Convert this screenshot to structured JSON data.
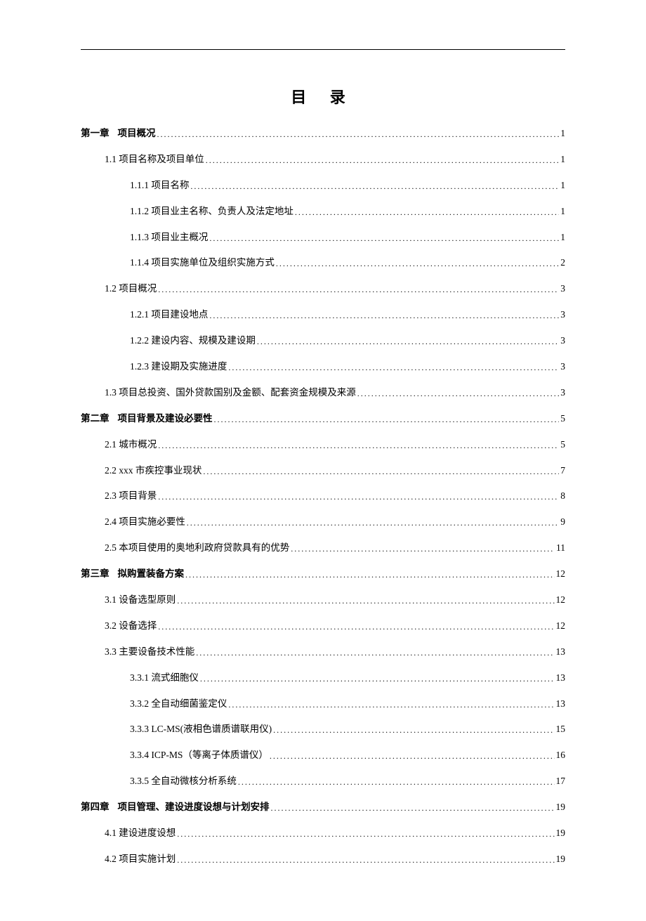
{
  "title": "目 录",
  "entries": [
    {
      "label": "项目概况",
      "page": "1",
      "level": 0,
      "prefix": "第一章",
      "bold": true
    },
    {
      "label": "1.1 项目名称及项目单位",
      "page": "1",
      "level": 1
    },
    {
      "label": "1.1.1 项目名称",
      "page": "1",
      "level": 2
    },
    {
      "label": "1.1.2 项目业主名称、负责人及法定地址",
      "page": "1",
      "level": 2
    },
    {
      "label": "1.1.3 项目业主概况",
      "page": "1",
      "level": 2
    },
    {
      "label": "1.1.4 项目实施单位及组织实施方式",
      "page": "2",
      "level": 2
    },
    {
      "label": "1.2 项目概况",
      "page": "3",
      "level": 1
    },
    {
      "label": "1.2.1 项目建设地点",
      "page": "3",
      "level": 2
    },
    {
      "label": "1.2.2 建设内容、规模及建设期",
      "page": "3",
      "level": 2
    },
    {
      "label": "1.2.3 建设期及实施进度",
      "page": "3",
      "level": 2
    },
    {
      "label": "1.3 项目总投资、国外贷款国别及金额、配套资金规模及来源",
      "page": "3",
      "level": 1
    },
    {
      "label": "项目背景及建设必要性",
      "page": "5",
      "level": 0,
      "prefix": "第二章",
      "bold": true
    },
    {
      "label": "2.1 城市概况",
      "page": "5",
      "level": 1
    },
    {
      "label": "2.2 xxx 市疾控事业现状",
      "page": "7",
      "level": 1
    },
    {
      "label": "2.3 项目背景",
      "page": "8",
      "level": 1
    },
    {
      "label": "2.4 项目实施必要性",
      "page": "9",
      "level": 1
    },
    {
      "label": "2.5 本项目使用的奥地利政府贷款具有的优势",
      "page": "11",
      "level": 1
    },
    {
      "label": "拟购置装备方案",
      "page": "12",
      "level": 0,
      "prefix": "第三章",
      "bold": true
    },
    {
      "label": "3.1 设备选型原则",
      "page": "12",
      "level": 1
    },
    {
      "label": "3.2 设备选择",
      "page": "12",
      "level": 1
    },
    {
      "label": "3.3 主要设备技术性能",
      "page": "13",
      "level": 1
    },
    {
      "label": "3.3.1 流式细胞仪",
      "page": "13",
      "level": 2
    },
    {
      "label": "3.3.2 全自动细菌鉴定仪",
      "page": "13",
      "level": 2
    },
    {
      "label": "3.3.3 LC-MS(液相色谱质谱联用仪)",
      "page": "15",
      "level": 2
    },
    {
      "label": "3.3.4 ICP-MS（等离子体质谱仪）",
      "page": "16",
      "level": 2
    },
    {
      "label": "3.3.5 全自动微核分析系统",
      "page": "17",
      "level": 2
    },
    {
      "label": "项目管理、建设进度设想与计划安排",
      "page": "19",
      "level": 0,
      "prefix": "第四章",
      "bold": true
    },
    {
      "label": "4.1 建设进度设想",
      "page": "19",
      "level": 1
    },
    {
      "label": "4.2 项目实施计划",
      "page": "19",
      "level": 1
    }
  ]
}
